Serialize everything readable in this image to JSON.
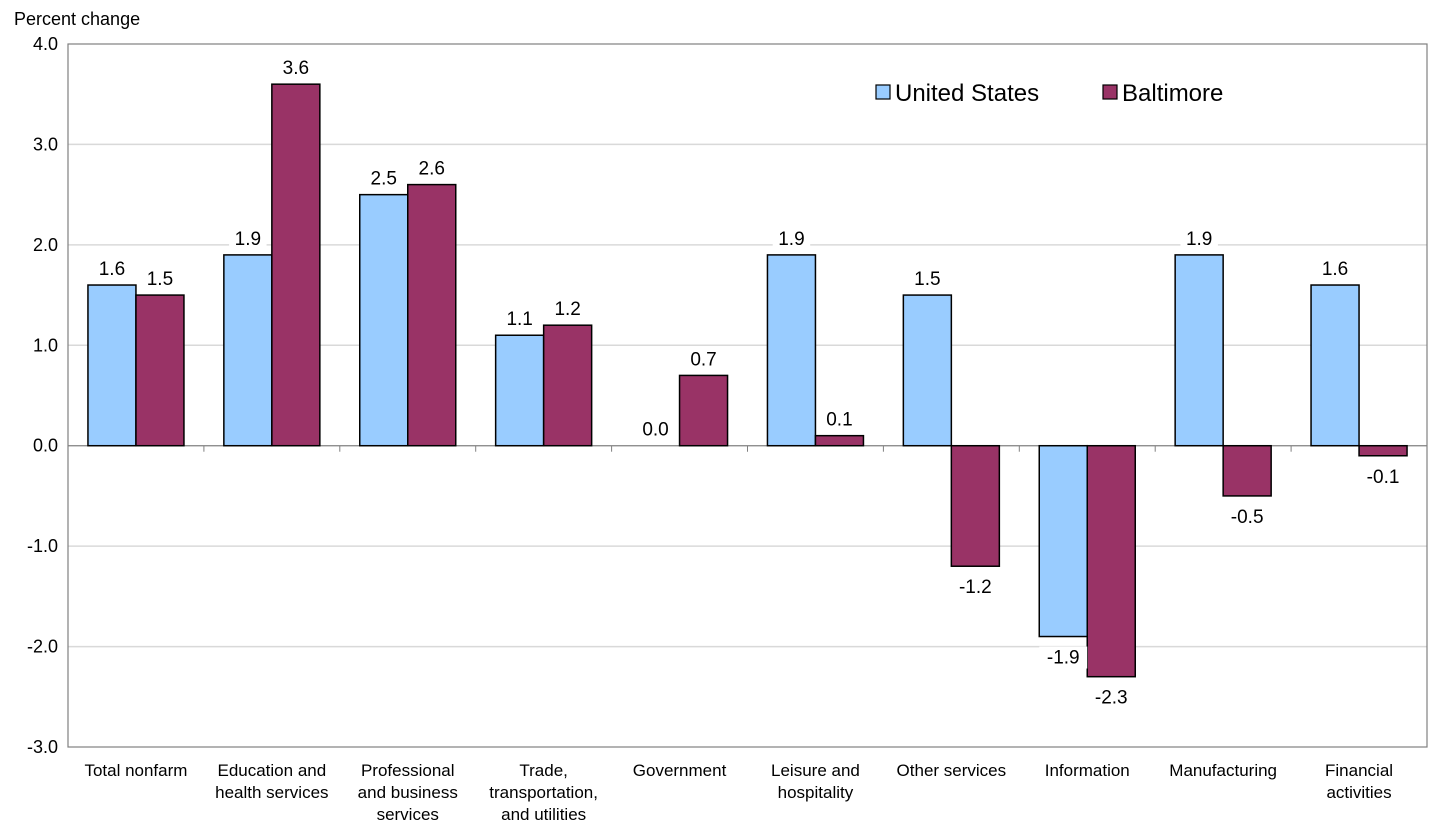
{
  "chart_data": {
    "type": "bar",
    "ylabel": "Percent change",
    "ylim": [
      -3.0,
      4.0
    ],
    "yticks": [
      "4.0",
      "3.0",
      "2.0",
      "1.0",
      "0.0",
      "-1.0",
      "-2.0",
      "-3.0"
    ],
    "ytick_values": [
      4,
      3,
      2,
      1,
      0,
      -1,
      -2,
      -3
    ],
    "grid": true,
    "legend_position": "top-right",
    "categories": [
      [
        "Total nonfarm"
      ],
      [
        "Education and",
        "health services"
      ],
      [
        "Professional",
        "and business",
        "services"
      ],
      [
        "Trade,",
        "transportation,",
        "and utilities"
      ],
      [
        "Government"
      ],
      [
        "Leisure and",
        "hospitality"
      ],
      [
        "Other services"
      ],
      [
        "Information"
      ],
      [
        "Manufacturing"
      ],
      [
        "Financial",
        "activities"
      ]
    ],
    "series": [
      {
        "name": "United States",
        "color": "#99ccff",
        "values": [
          1.6,
          1.9,
          2.5,
          1.1,
          0.0,
          1.9,
          1.5,
          -1.9,
          1.9,
          1.6
        ],
        "labels": [
          "1.6",
          "1.9",
          "2.5",
          "1.1",
          "0.0",
          "1.9",
          "1.5",
          "-1.9",
          "1.9",
          "1.6"
        ]
      },
      {
        "name": "Baltimore",
        "color": "#993366",
        "values": [
          1.5,
          3.6,
          2.6,
          1.2,
          0.7,
          0.1,
          -1.2,
          -2.3,
          -0.5,
          -0.1
        ],
        "labels": [
          "1.5",
          "3.6",
          "2.6",
          "1.2",
          "0.7",
          "0.1",
          "-1.2",
          "-2.3",
          "-0.5",
          "-0.1"
        ]
      }
    ]
  }
}
